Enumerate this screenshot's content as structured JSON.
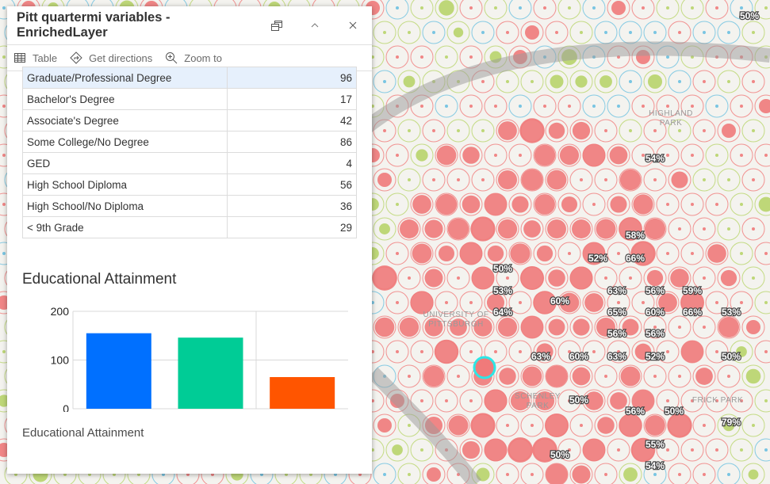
{
  "popup": {
    "title": "Pitt quartermi variables - EnrichedLayer",
    "actions": [
      {
        "label": "Table",
        "icon": "table-icon"
      },
      {
        "label": "Get directions",
        "icon": "directions-icon"
      },
      {
        "label": "Zoom to",
        "icon": "zoom-in-icon"
      }
    ],
    "table": [
      {
        "label": "Graduate/Professional Degree",
        "value": "96",
        "selected": true
      },
      {
        "label": "Bachelor's Degree",
        "value": "17"
      },
      {
        "label": "Associate's Degree",
        "value": "42"
      },
      {
        "label": "Some College/No Degree",
        "value": "86"
      },
      {
        "label": "GED",
        "value": "4"
      },
      {
        "label": "High School Diploma",
        "value": "56"
      },
      {
        "label": "High School/No Diploma",
        "value": "36"
      },
      {
        "label": "< 9th Grade",
        "value": "29"
      }
    ],
    "chart_title": "Educational Attainment",
    "chart_caption": "Educational Attainment"
  },
  "chart_data": {
    "type": "bar",
    "title": "Educational Attainment",
    "xlabel": "Educational Attainment",
    "categories": [
      "",
      "",
      ""
    ],
    "values": [
      155,
      146,
      65
    ],
    "colors": [
      "#0070ff",
      "#00cc96",
      "#ff5500"
    ],
    "ylim": [
      0,
      200
    ],
    "yticks": [
      "0",
      "100",
      "200"
    ],
    "grid": true
  },
  "map": {
    "labels": [
      "50%",
      "54%",
      "58%",
      "52%",
      "66%",
      "50%",
      "53%",
      "60%",
      "64%",
      "63%",
      "56%",
      "59%",
      "65%",
      "60%",
      "66%",
      "53%",
      "56%",
      "56%",
      "63%",
      "60%",
      "63%",
      "52%",
      "50%",
      "50%",
      "56%",
      "50%",
      "79%",
      "55%",
      "50%",
      "54%"
    ],
    "places": [
      "HIGHLAND",
      "PARK",
      "UNIVERSITY OF",
      "PITTSBURGH",
      "SCHENLEY",
      "PARK",
      "FRICK PARK"
    ],
    "colors": {
      "high": "#f07a7a",
      "mid": "#b8d46a",
      "low": "#6cc0e0"
    }
  }
}
